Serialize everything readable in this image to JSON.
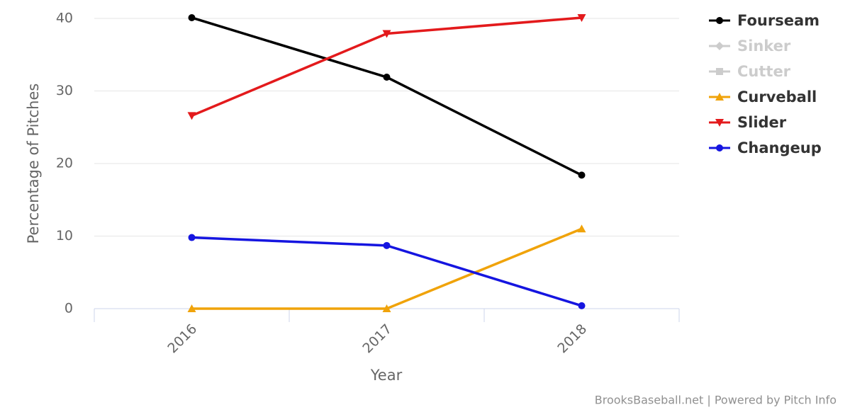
{
  "chart_data": {
    "type": "line",
    "y_label": "Percentage of Pitches",
    "x_label": "Year",
    "credits": "BrooksBaseball.net | Powered by Pitch Info",
    "categories": [
      "2016",
      "2017",
      "2018"
    ],
    "ylim": [
      0,
      40
    ],
    "yticks": [
      0,
      10,
      20,
      30,
      40
    ],
    "grid": true,
    "legend": "right",
    "series": [
      {
        "name": "Fourseam",
        "color": "#000000",
        "marker": "circle",
        "visible": true,
        "values": [
          40.1,
          31.9,
          18.4
        ]
      },
      {
        "name": "Sinker",
        "color": "#cccccc",
        "marker": "diamond",
        "visible": false,
        "values": [
          null,
          null,
          null
        ]
      },
      {
        "name": "Cutter",
        "color": "#cccccc",
        "marker": "square",
        "visible": false,
        "values": [
          null,
          null,
          null
        ]
      },
      {
        "name": "Curveball",
        "color": "#f0a30a",
        "marker": "triangle",
        "visible": true,
        "values": [
          0,
          0,
          11.0
        ]
      },
      {
        "name": "Slider",
        "color": "#e31a1c",
        "marker": "triangle-down",
        "visible": true,
        "values": [
          26.6,
          37.9,
          40.1
        ]
      },
      {
        "name": "Changeup",
        "color": "#1515e0",
        "marker": "circle",
        "visible": true,
        "values": [
          9.8,
          8.7,
          0.4
        ]
      }
    ]
  }
}
